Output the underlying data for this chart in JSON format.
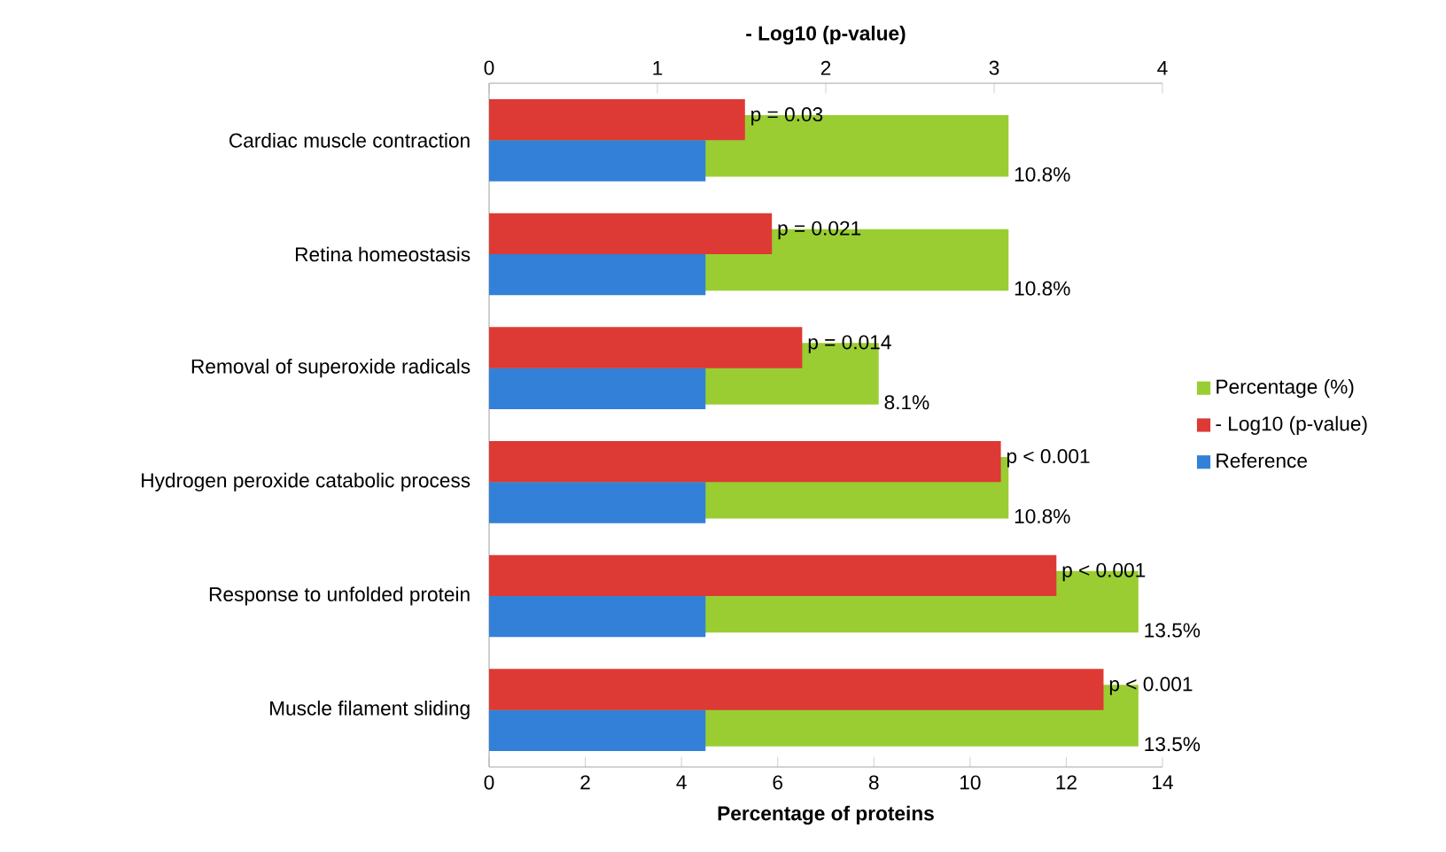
{
  "chart_data": {
    "type": "bar",
    "orientation": "horizontal",
    "xlabel": "Percentage of proteins",
    "x2label": "- Log10 (p-value)",
    "legend": "right",
    "categories": [
      "Cardiac muscle contraction",
      "Retina homeostasis",
      "Removal of superoxide radicals",
      "Hydrogen peroxide catabolic process",
      "Response to unfolded protein",
      "Muscle filament sliding"
    ],
    "annotations": [
      "p = 0.03",
      "p = 0.021",
      "p = 0.014",
      "p < 0.001",
      "p < 0.001",
      "p < 0.001"
    ],
    "xlim": [
      0,
      14
    ],
    "xticks": [
      0,
      2,
      4,
      6,
      8,
      10,
      12,
      14
    ],
    "x2lim": [
      0,
      4
    ],
    "x2ticks": [
      0,
      1,
      2,
      3,
      4
    ],
    "series": [
      {
        "name": "Percentage (%)",
        "color": "#9acd32",
        "values": [
          10.8,
          10.8,
          8.1,
          10.8,
          13.5,
          13.5
        ],
        "value_labels": [
          "10.8%",
          "10.8%",
          "8.1%",
          "10.8%",
          "13.5%",
          "13.5%"
        ]
      },
      {
        "name": "- Log10 (p-value)",
        "color": "#dd3a35",
        "axis": "x2",
        "values": [
          1.52,
          1.68,
          1.86,
          3.04,
          3.37,
          3.65
        ]
      },
      {
        "name": "Reference",
        "color": "#3380d8",
        "values": [
          4.5,
          4.5,
          4.5,
          4.5,
          4.5,
          4.5
        ]
      }
    ]
  }
}
